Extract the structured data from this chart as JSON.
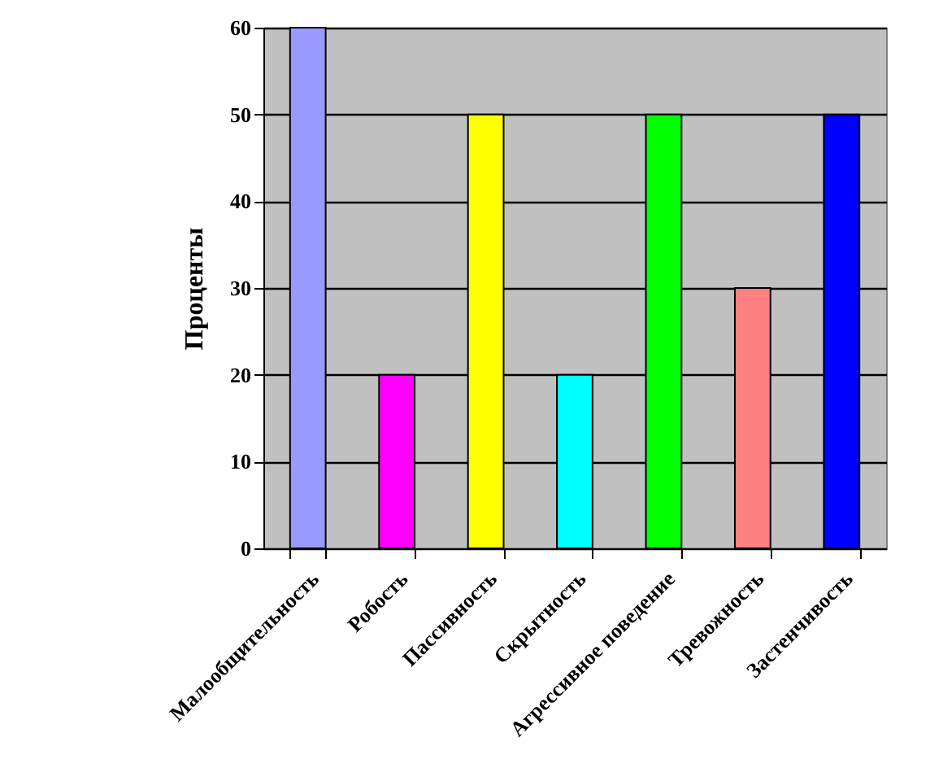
{
  "chart_data": {
    "type": "bar",
    "ylabel": "Проценты",
    "categories": [
      "Малообщительность",
      "Робость",
      "Пассивность",
      "Скрытность",
      "Агрессивное поведение",
      "Тревожность",
      "Застенчивость"
    ],
    "values": [
      60,
      20,
      50,
      20,
      50,
      30,
      50
    ],
    "colors": [
      "#9999ff",
      "#ff00ff",
      "#ffff00",
      "#00ffff",
      "#00ff00",
      "#ff8080",
      "#0000ff"
    ],
    "ylim": [
      0,
      60
    ],
    "yticks": [
      0,
      10,
      20,
      30,
      40,
      50,
      60
    ],
    "grid": "y"
  }
}
